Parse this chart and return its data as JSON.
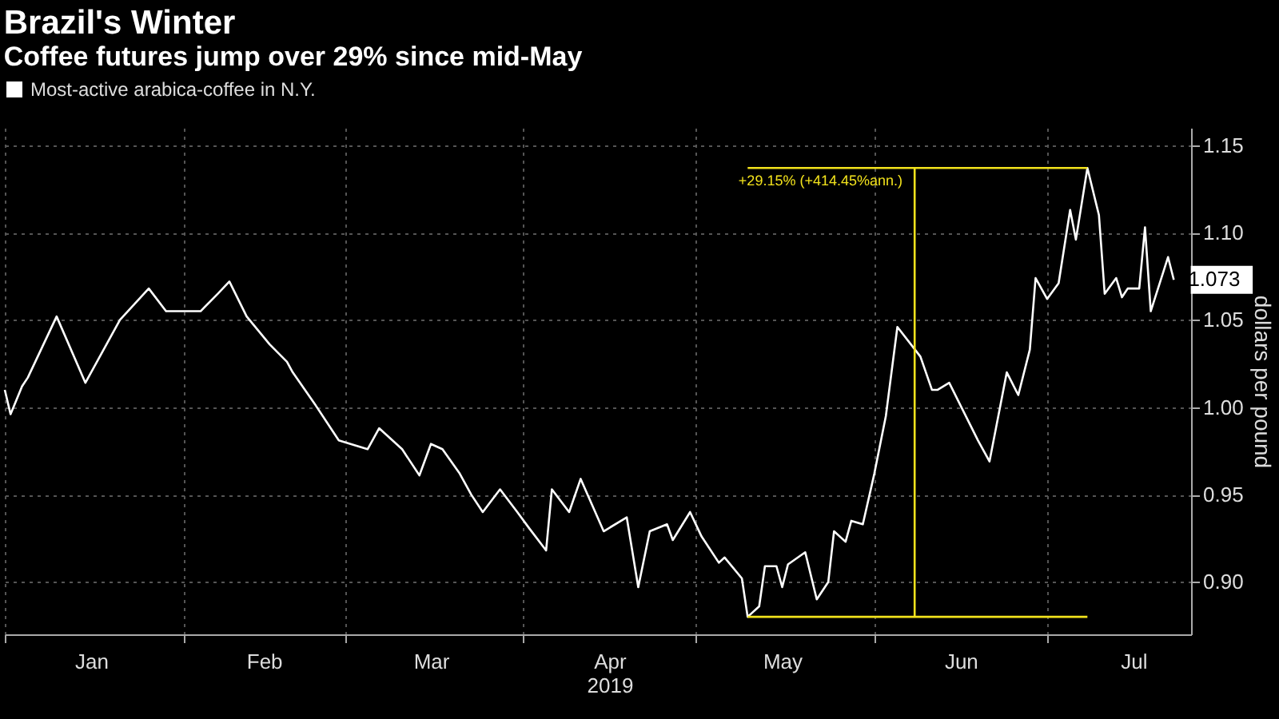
{
  "chart_data": {
    "type": "line",
    "title": "Brazil's Winter",
    "subtitle": "Coffee futures jump over 29% since mid-May",
    "ylabel": "dollars per pound",
    "xlim": [
      "2019-01-01",
      "2019-07-26"
    ],
    "xticks": [
      {
        "value": "2019-01-01",
        "label": null
      },
      {
        "value": "2019-01-16",
        "label": "Jan"
      },
      {
        "value": "2019-02-01",
        "label": null
      },
      {
        "value": "2019-02-15",
        "label": "Feb"
      },
      {
        "value": "2019-03-01",
        "label": null
      },
      {
        "value": "2019-03-16",
        "label": "Mar"
      },
      {
        "value": "2019-04-01",
        "label": null
      },
      {
        "value": "2019-04-16",
        "label": "Apr\n2019"
      },
      {
        "value": "2019-05-01",
        "label": null
      },
      {
        "value": "2019-05-16",
        "label": "May"
      },
      {
        "value": "2019-06-01",
        "label": null
      },
      {
        "value": "2019-06-16",
        "label": "Jun"
      },
      {
        "value": "2019-07-01",
        "label": null
      },
      {
        "value": "2019-07-16",
        "label": "Jul"
      }
    ],
    "ylim": [
      0.87,
      1.16
    ],
    "yticks": [
      {
        "value": 0.9,
        "label": "0.90"
      },
      {
        "value": 0.95,
        "label": "0.95"
      },
      {
        "value": 1.0,
        "label": "1.00"
      },
      {
        "value": 1.05,
        "label": "1.05"
      },
      {
        "value": 1.1,
        "label": "1.10"
      },
      {
        "value": 1.15,
        "label": "1.15"
      }
    ],
    "grid": true,
    "legend": "top left",
    "series": [
      {
        "name": "Most-active arabica-coffee in N.Y.",
        "color": "#ffffff",
        "x": [
          "2019-01-01",
          "2019-01-02",
          "2019-01-04",
          "2019-01-05",
          "2019-01-10",
          "2019-01-15",
          "2019-01-21",
          "2019-01-26",
          "2019-01-29",
          "2019-02-04",
          "2019-02-07",
          "2019-02-09",
          "2019-02-12",
          "2019-02-16",
          "2019-02-19",
          "2019-02-20",
          "2019-02-24",
          "2019-02-28",
          "2019-03-05",
          "2019-03-07",
          "2019-03-11",
          "2019-03-14",
          "2019-03-16",
          "2019-03-18",
          "2019-03-21",
          "2019-03-23",
          "2019-03-25",
          "2019-03-28",
          "2019-03-31",
          "2019-04-02",
          "2019-04-05",
          "2019-04-06",
          "2019-04-09",
          "2019-04-11",
          "2019-04-15",
          "2019-04-19",
          "2019-04-21",
          "2019-04-23",
          "2019-04-26",
          "2019-04-27",
          "2019-04-30",
          "2019-05-02",
          "2019-05-05",
          "2019-05-06",
          "2019-05-09",
          "2019-05-10",
          "2019-05-12",
          "2019-05-13",
          "2019-05-15",
          "2019-05-16",
          "2019-05-17",
          "2019-05-20",
          "2019-05-22",
          "2019-05-24",
          "2019-05-25",
          "2019-05-27",
          "2019-05-28",
          "2019-05-30",
          "2019-06-01",
          "2019-06-03",
          "2019-06-05",
          "2019-06-09",
          "2019-06-11",
          "2019-06-12",
          "2019-06-14",
          "2019-06-19",
          "2019-06-21",
          "2019-06-24",
          "2019-06-26",
          "2019-06-28",
          "2019-06-29",
          "2019-07-01",
          "2019-07-03",
          "2019-07-05",
          "2019-07-06",
          "2019-07-08",
          "2019-07-10",
          "2019-07-11",
          "2019-07-13",
          "2019-07-14",
          "2019-07-15",
          "2019-07-17",
          "2019-07-18",
          "2019-07-19",
          "2019-07-22",
          "2019-07-23"
        ],
        "values": [
          1.01,
          0.996,
          1.012,
          1.017,
          1.052,
          1.014,
          1.05,
          1.068,
          1.055,
          1.055,
          1.065,
          1.072,
          1.052,
          1.036,
          1.026,
          1.02,
          1.001,
          0.981,
          0.976,
          0.988,
          0.976,
          0.961,
          0.979,
          0.976,
          0.962,
          0.95,
          0.94,
          0.953,
          0.94,
          0.931,
          0.918,
          0.953,
          0.94,
          0.959,
          0.929,
          0.937,
          0.897,
          0.929,
          0.933,
          0.924,
          0.94,
          0.926,
          0.911,
          0.914,
          0.902,
          0.88,
          0.886,
          0.909,
          0.909,
          0.897,
          0.91,
          0.917,
          0.89,
          0.9,
          0.929,
          0.923,
          0.935,
          0.933,
          0.962,
          0.995,
          1.046,
          1.029,
          1.01,
          1.01,
          1.014,
          0.981,
          0.969,
          1.02,
          1.007,
          1.033,
          1.074,
          1.062,
          1.071,
          1.113,
          1.096,
          1.137,
          1.11,
          1.065,
          1.074,
          1.063,
          1.068,
          1.068,
          1.103,
          1.055,
          1.086,
          1.073
        ],
        "value_labels": [
          null,
          null,
          null,
          null,
          null,
          null,
          null,
          null,
          null,
          null,
          null,
          null,
          null,
          null,
          null,
          null,
          null,
          null,
          null,
          null,
          null,
          null,
          null,
          null,
          null,
          null,
          null,
          null,
          null,
          null,
          null,
          null,
          null,
          null,
          null,
          null,
          null,
          null,
          null,
          null,
          null,
          null,
          null,
          null,
          null,
          null,
          null,
          null,
          null,
          null,
          null,
          null,
          null,
          null,
          null,
          null,
          null,
          null,
          null,
          null,
          null,
          null,
          null,
          null,
          null,
          null,
          null,
          null,
          null,
          null,
          null,
          null,
          null,
          null,
          null,
          null,
          null,
          null,
          null,
          null,
          null,
          null,
          null,
          null,
          null,
          "1.073"
        ]
      },
      {
        "color": "#f2e21c",
        "x": [
          "2019-05-10",
          "2019-07-08"
        ],
        "values": [
          0.88,
          0.88
        ]
      },
      {
        "color": "#f2e21c",
        "x": [
          "2019-05-10",
          "2019-07-08"
        ],
        "values": [
          1.137,
          1.137
        ]
      },
      {
        "color": "#f2e21c",
        "x": [
          "2019-06-08",
          "2019-06-08"
        ],
        "values": [
          0.88,
          1.137
        ]
      }
    ],
    "annotations": [
      {
        "text": "+29.15% (+414.45%ann.)",
        "x": "2019-06-07",
        "y": 1.137
      }
    ]
  }
}
